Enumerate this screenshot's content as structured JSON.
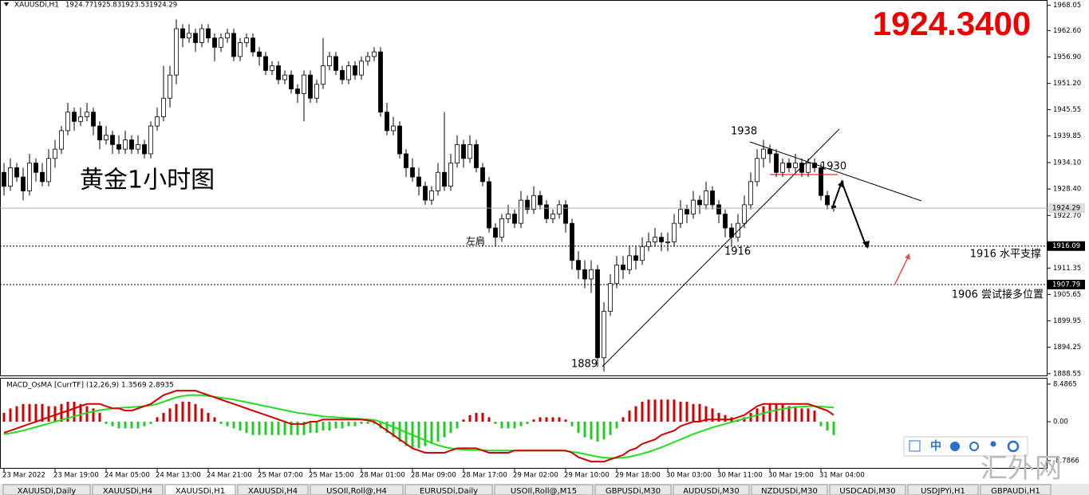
{
  "header": {
    "symbol": "XAUUSDi,H1"
  },
  "watermark": "汇外网",
  "big_price": "1924.3400",
  "chart_title": "黄金1小时图",
  "annotations": {
    "a1938": "1938",
    "a1930": "1930",
    "a1916": "1916",
    "a1889": "1889",
    "shoulder": "左肩",
    "support": "1916 水平支撑",
    "long_zone": "1906 尝试接多位置"
  },
  "tabs": [
    "XAUUSDi,Daily",
    "XAUUSDi,H4",
    "XAUUSDi,H1",
    "XAUUSDi,H4",
    "USOIl,Roll@,H4",
    "EURUSDi,Daily",
    "USOIl,Roll@,M15",
    "GBPUSDi,M30",
    "AUDUSDi,M30",
    "NZDUSDi,M30",
    "USDCADi,M30",
    "USDJPYi,H1",
    "GBPAUDi,H1"
  ],
  "active_tab": 2,
  "toolbar_label": "中",
  "chart_data": {
    "type": "candlestick",
    "up_color": "#ffffff",
    "down_color": "#000000",
    "ylim": [
      1888.0,
      1969.2
    ],
    "yticks": [
      1968.05,
      {
        "value": 1962.6,
        "label": "1962.60"
      },
      {
        "value": 1956.9,
        "label": "1956.90"
      },
      {
        "value": 1951.2,
        "label": "1951.20"
      },
      1945.55,
      1939.85,
      {
        "value": 1934.1,
        "label": "1934.10"
      },
      {
        "value": 1928.4,
        "label": "1928.40"
      },
      {
        "value": 1922.7,
        "label": "1922.70"
      },
      1911.35,
      1905.65,
      1899.95,
      1894.25,
      1888.55
    ],
    "hlines": [
      1916.09,
      1907.79
    ],
    "categories": [
      "23 Mar 2022",
      null,
      null,
      null,
      null,
      null,
      null,
      null,
      "23 Mar 19:00",
      null,
      null,
      null,
      null,
      null,
      null,
      null,
      "24 Mar 05:00",
      null,
      null,
      null,
      null,
      null,
      null,
      null,
      "24 Mar 13:00",
      null,
      null,
      null,
      null,
      null,
      null,
      null,
      "24 Mar 21:00",
      null,
      null,
      null,
      null,
      null,
      null,
      null,
      "25 Mar 07:00",
      null,
      null,
      null,
      null,
      null,
      null,
      null,
      "25 Mar 15:00",
      null,
      null,
      null,
      null,
      null,
      null,
      null,
      "28 Mar 01:00",
      null,
      null,
      null,
      null,
      null,
      null,
      null,
      "28 Mar 09:00",
      null,
      null,
      null,
      null,
      null,
      null,
      null,
      "28 Mar 17:00",
      null,
      null,
      null,
      null,
      null,
      null,
      null,
      "29 Mar 02:00",
      null,
      null,
      null,
      null,
      null,
      null,
      null,
      "29 Mar 10:00",
      null,
      null,
      null,
      null,
      null,
      null,
      null,
      "29 Mar 18:00",
      null,
      null,
      null,
      null,
      null,
      null,
      null,
      "30 Mar 03:00",
      null,
      null,
      null,
      null,
      null,
      null,
      null,
      "30 Mar 11:00",
      null,
      null,
      null,
      null,
      null,
      null,
      null,
      "30 Mar 19:00",
      null,
      null,
      null,
      null,
      null,
      null,
      null,
      "31 Mar 04:00",
      null,
      null
    ],
    "ohlc": [
      [
        1932,
        1934,
        1927,
        1929
      ],
      [
        1929,
        1935,
        1928,
        1933
      ],
      [
        1933,
        1934,
        1930,
        1931
      ],
      [
        1931,
        1933,
        1926,
        1928
      ],
      [
        1928,
        1936,
        1927,
        1934
      ],
      [
        1934,
        1935,
        1930,
        1932
      ],
      [
        1932,
        1934,
        1929,
        1930
      ],
      [
        1930,
        1937,
        1929,
        1935
      ],
      [
        1935,
        1939,
        1933,
        1937
      ],
      [
        1937,
        1942,
        1936,
        1941
      ],
      [
        1941,
        1947,
        1940,
        1945
      ],
      [
        1945,
        1946,
        1941,
        1943
      ],
      [
        1943,
        1946,
        1942,
        1944
      ],
      [
        1944,
        1947,
        1943,
        1945
      ],
      [
        1945,
        1946,
        1940,
        1942
      ],
      [
        1942,
        1943,
        1937,
        1939
      ],
      [
        1939,
        1942,
        1938,
        1940
      ],
      [
        1940,
        1941,
        1936,
        1938
      ],
      [
        1938,
        1940,
        1936,
        1937
      ],
      [
        1937,
        1941,
        1936,
        1939
      ],
      [
        1939,
        1940,
        1936,
        1937
      ],
      [
        1937,
        1940,
        1936,
        1938
      ],
      [
        1938,
        1939,
        1935,
        1936
      ],
      [
        1936,
        1943,
        1935,
        1942
      ],
      [
        1942,
        1946,
        1941,
        1944
      ],
      [
        1944,
        1955,
        1943,
        1948
      ],
      [
        1948,
        1955,
        1946,
        1953
      ],
      [
        1953,
        1965,
        1951,
        1963
      ],
      [
        1963,
        1964,
        1959,
        1961
      ],
      [
        1961,
        1964,
        1960,
        1962
      ],
      [
        1962,
        1963,
        1958,
        1960
      ],
      [
        1960,
        1964,
        1959,
        1963
      ],
      [
        1963,
        1964,
        1960,
        1961
      ],
      [
        1961,
        1962,
        1956,
        1959
      ],
      [
        1959,
        1962,
        1958,
        1961
      ],
      [
        1961,
        1963,
        1960,
        1962
      ],
      [
        1962,
        1963,
        1956,
        1957
      ],
      [
        1957,
        1961,
        1956,
        1960
      ],
      [
        1960,
        1962,
        1959,
        1961
      ],
      [
        1961,
        1962,
        1957,
        1958
      ],
      [
        1958,
        1959,
        1955,
        1957
      ],
      [
        1957,
        1958,
        1953,
        1954
      ],
      [
        1954,
        1956,
        1953,
        1955
      ],
      [
        1955,
        1956,
        1951,
        1952
      ],
      [
        1952,
        1954,
        1951,
        1953
      ],
      [
        1953,
        1954,
        1949,
        1950
      ],
      [
        1950,
        1951,
        1947,
        1949
      ],
      [
        1949,
        1954,
        1943,
        1953
      ],
      [
        1953,
        1954,
        1947,
        1948
      ],
      [
        1948,
        1952,
        1947,
        1951
      ],
      [
        1951,
        1961,
        1950,
        1955
      ],
      [
        1955,
        1958,
        1954,
        1957
      ],
      [
        1957,
        1958,
        1953,
        1954
      ],
      [
        1954,
        1955,
        1951,
        1952
      ],
      [
        1952,
        1956,
        1951,
        1955
      ],
      [
        1955,
        1956,
        1952,
        1953
      ],
      [
        1953,
        1957,
        1952,
        1956
      ],
      [
        1956,
        1958,
        1955,
        1957
      ],
      [
        1957,
        1959,
        1956,
        1958
      ],
      [
        1958,
        1959,
        1944,
        1945
      ],
      [
        1945,
        1947,
        1940,
        1941
      ],
      [
        1941,
        1944,
        1940,
        1942
      ],
      [
        1942,
        1943,
        1935,
        1936
      ],
      [
        1936,
        1937,
        1931,
        1933
      ],
      [
        1933,
        1935,
        1930,
        1931
      ],
      [
        1931,
        1933,
        1927,
        1929
      ],
      [
        1929,
        1930,
        1925,
        1926
      ],
      [
        1926,
        1929,
        1925,
        1928
      ],
      [
        1928,
        1934,
        1927,
        1932
      ],
      [
        1932,
        1945,
        1928,
        1929
      ],
      [
        1929,
        1936,
        1928,
        1934
      ],
      [
        1934,
        1940,
        1933,
        1938
      ],
      [
        1938,
        1939,
        1933,
        1935
      ],
      [
        1935,
        1940,
        1934,
        1938
      ],
      [
        1938,
        1939,
        1932,
        1933
      ],
      [
        1933,
        1934,
        1929,
        1930
      ],
      [
        1930,
        1931,
        1919,
        1920
      ],
      [
        1920,
        1921,
        1916,
        1918
      ],
      [
        1918,
        1923,
        1917,
        1922
      ],
      [
        1922,
        1925,
        1921,
        1923
      ],
      [
        1923,
        1924,
        1920,
        1921
      ],
      [
        1921,
        1928,
        1920,
        1926
      ],
      [
        1926,
        1927,
        1923,
        1924
      ],
      [
        1924,
        1929,
        1923,
        1927
      ],
      [
        1927,
        1928,
        1924,
        1925
      ],
      [
        1925,
        1926,
        1921,
        1922
      ],
      [
        1922,
        1924,
        1921,
        1923
      ],
      [
        1923,
        1926,
        1922,
        1925
      ],
      [
        1925,
        1926,
        1919,
        1921
      ],
      [
        1921,
        1922,
        1911,
        1913
      ],
      [
        1913,
        1915,
        1909,
        1911
      ],
      [
        1911,
        1913,
        1907,
        1909
      ],
      [
        1909,
        1913,
        1906,
        1911
      ],
      [
        1911,
        1912,
        1890,
        1892
      ],
      [
        1892,
        1904,
        1889,
        1902
      ],
      [
        1902,
        1910,
        1901,
        1908
      ],
      [
        1908,
        1914,
        1907,
        1912
      ],
      [
        1912,
        1914,
        1909,
        1911
      ],
      [
        1911,
        1916,
        1910,
        1914
      ],
      [
        1914,
        1916,
        1911,
        1913
      ],
      [
        1913,
        1918,
        1912,
        1916
      ],
      [
        1916,
        1919,
        1915,
        1917
      ],
      [
        1917,
        1920,
        1916,
        1918
      ],
      [
        1918,
        1919,
        1915,
        1917
      ],
      [
        1917,
        1919,
        1915,
        1917
      ],
      [
        1917,
        1923,
        1916,
        1921
      ],
      [
        1921,
        1926,
        1920,
        1924
      ],
      [
        1924,
        1925,
        1921,
        1923
      ],
      [
        1923,
        1928,
        1922,
        1926
      ],
      [
        1926,
        1927,
        1923,
        1925
      ],
      [
        1925,
        1930,
        1924,
        1928
      ],
      [
        1928,
        1929,
        1924,
        1925
      ],
      [
        1925,
        1926,
        1921,
        1923
      ],
      [
        1923,
        1924,
        1918,
        1920
      ],
      [
        1920,
        1921,
        1916,
        1918
      ],
      [
        1918,
        1923,
        1917,
        1921
      ],
      [
        1921,
        1927,
        1920,
        1925
      ],
      [
        1925,
        1932,
        1924,
        1930
      ],
      [
        1930,
        1937,
        1929,
        1935
      ],
      [
        1935,
        1939,
        1933,
        1937
      ],
      [
        1937,
        1938,
        1934,
        1936
      ],
      [
        1936,
        1937,
        1931,
        1932
      ],
      [
        1932,
        1935,
        1931,
        1934
      ],
      [
        1934,
        1935,
        1932,
        1933
      ],
      [
        1933,
        1936,
        1932,
        1934
      ],
      [
        1934,
        1935,
        1931,
        1932
      ],
      [
        1932,
        1935,
        1931,
        1934
      ],
      [
        1934,
        1935,
        1932,
        1933
      ],
      [
        1933,
        1934,
        1926,
        1927
      ],
      [
        1927,
        1928,
        1924,
        1925
      ],
      [
        1924.77,
        1925.83,
        1923.53,
        1924.29
      ]
    ],
    "macd": {
      "title": "MACD_OsMA [CurrTF] (12,26,9) 1.3569 2.8935",
      "ylim": [
        -10.6,
        9.9
      ],
      "yticks": [
        8.4865,
        {
          "value": 0,
          "label": "0.00"
        },
        -8.7866
      ],
      "pos_color": "#d00000",
      "neg_color": "#22cc22",
      "histogram": [
        2,
        3,
        3.5,
        4,
        4,
        4,
        4,
        3.5,
        3.5,
        4,
        4.5,
        4.5,
        4,
        3.5,
        3,
        2,
        -0.5,
        -1,
        -1.5,
        -1.5,
        -1.5,
        -1.5,
        -1,
        -0.5,
        1,
        2,
        3,
        4,
        4.5,
        4.5,
        4,
        3,
        2,
        1,
        -0.5,
        -1,
        -1.5,
        -2,
        -2.5,
        -3,
        -3,
        -3,
        -3,
        -3,
        -3,
        -3,
        -3,
        -3,
        -2.5,
        -2.5,
        -2,
        -2,
        -1.5,
        -1.5,
        -1,
        -1,
        -0.5,
        -0.5,
        -0.5,
        -1.5,
        -2.5,
        -3.5,
        -4.5,
        -5.5,
        -6,
        -6,
        -5.5,
        -5,
        -4.5,
        -3.5,
        -2.5,
        -1.5,
        0.5,
        1.5,
        2,
        2,
        1,
        -0.5,
        -1.5,
        -1.5,
        -1.5,
        -1,
        -0.5,
        0.5,
        1,
        1,
        1,
        1,
        0.5,
        -1,
        -2.5,
        -3.5,
        -4,
        -4.5,
        -4,
        -3,
        -1.5,
        1,
        2.5,
        3.5,
        4.5,
        5,
        5,
        5,
        5,
        5,
        4.5,
        4.5,
        4,
        4,
        3.5,
        3,
        2,
        1.5,
        1,
        0.5,
        1,
        2,
        3,
        3.5,
        4,
        4,
        4,
        3.5,
        3.5,
        3,
        3,
        2.5,
        -1,
        -2,
        -3
      ],
      "macd_line": {
        "color": "#d00000",
        "values": [
          -2.5,
          -2,
          -1.5,
          -1,
          -0.5,
          0,
          0.5,
          1,
          1.5,
          2,
          2.5,
          3,
          3.5,
          4,
          4,
          4,
          3.5,
          3,
          3,
          2.5,
          2.5,
          3,
          3.5,
          4,
          5,
          6,
          6.5,
          7,
          7,
          7,
          7,
          6.5,
          6,
          5.5,
          5,
          4.5,
          4,
          3.5,
          3,
          2.5,
          2,
          1.5,
          1,
          0.5,
          0,
          -0.5,
          -0.5,
          -0.5,
          0,
          0,
          0.5,
          0.5,
          0.5,
          0.5,
          0.5,
          0.5,
          0.5,
          0.3,
          0,
          -1,
          -2,
          -3,
          -4,
          -5,
          -6,
          -6.5,
          -7,
          -7,
          -7,
          -7,
          -6.5,
          -6,
          -6,
          -6,
          -6,
          -6.5,
          -7,
          -7,
          -7,
          -7,
          -6.5,
          -6.5,
          -6.5,
          -6.5,
          -6.5,
          -6.5,
          -6.5,
          -6.5,
          -6.5,
          -7,
          -8,
          -8.5,
          -9,
          -9,
          -9,
          -8.5,
          -8,
          -7.5,
          -6.5,
          -6,
          -5,
          -4.5,
          -4,
          -3,
          -2.5,
          -2,
          -1,
          -0.5,
          0,
          0,
          0.5,
          0.5,
          0.5,
          0.5,
          0.5,
          1,
          1.5,
          2.5,
          3.5,
          4,
          4,
          4,
          4,
          4,
          4,
          4,
          4,
          3.5,
          3,
          2.5,
          1.5
        ]
      },
      "signal_line": {
        "color": "#22dd22",
        "values": [
          -2.8,
          -2.6,
          -2.3,
          -2,
          -1.6,
          -1.2,
          -0.8,
          -0.4,
          0,
          0.4,
          0.8,
          1.2,
          1.6,
          2,
          2.3,
          2.6,
          2.8,
          3,
          3.1,
          3.2,
          3.3,
          3.4,
          3.5,
          3.7,
          4,
          4.5,
          5,
          5.5,
          5.8,
          6,
          6,
          6,
          5.8,
          5.6,
          5.4,
          5.2,
          5,
          4.7,
          4.4,
          4.1,
          3.8,
          3.5,
          3.2,
          2.9,
          2.6,
          2.3,
          2,
          1.8,
          1.6,
          1.4,
          1.2,
          1.1,
          1,
          0.9,
          0.8,
          0.7,
          0.6,
          0.5,
          0.4,
          0,
          -0.6,
          -1.2,
          -1.8,
          -2.4,
          -3,
          -3.6,
          -4.2,
          -4.8,
          -5.3,
          -5.7,
          -6,
          -6.2,
          -6.3,
          -6.4,
          -6.4,
          -6.4,
          -6.5,
          -6.5,
          -6.5,
          -6.5,
          -6.5,
          -6.5,
          -6.5,
          -6.5,
          -6.5,
          -6.5,
          -6.5,
          -6.5,
          -6.6,
          -6.8,
          -7,
          -7.3,
          -7.6,
          -7.9,
          -8.1,
          -8.2,
          -8.2,
          -8.1,
          -7.9,
          -7.6,
          -7.2,
          -6.8,
          -6.3,
          -5.8,
          -5.2,
          -4.6,
          -4,
          -3.4,
          -2.8,
          -2.3,
          -1.8,
          -1.3,
          -0.9,
          -0.5,
          -0.1,
          0.3,
          0.7,
          1.1,
          1.5,
          1.9,
          2.3,
          2.6,
          2.9,
          3.1,
          3.3,
          3.4,
          3.5,
          3.5,
          3.4,
          3.3,
          3.2
        ]
      }
    }
  }
}
